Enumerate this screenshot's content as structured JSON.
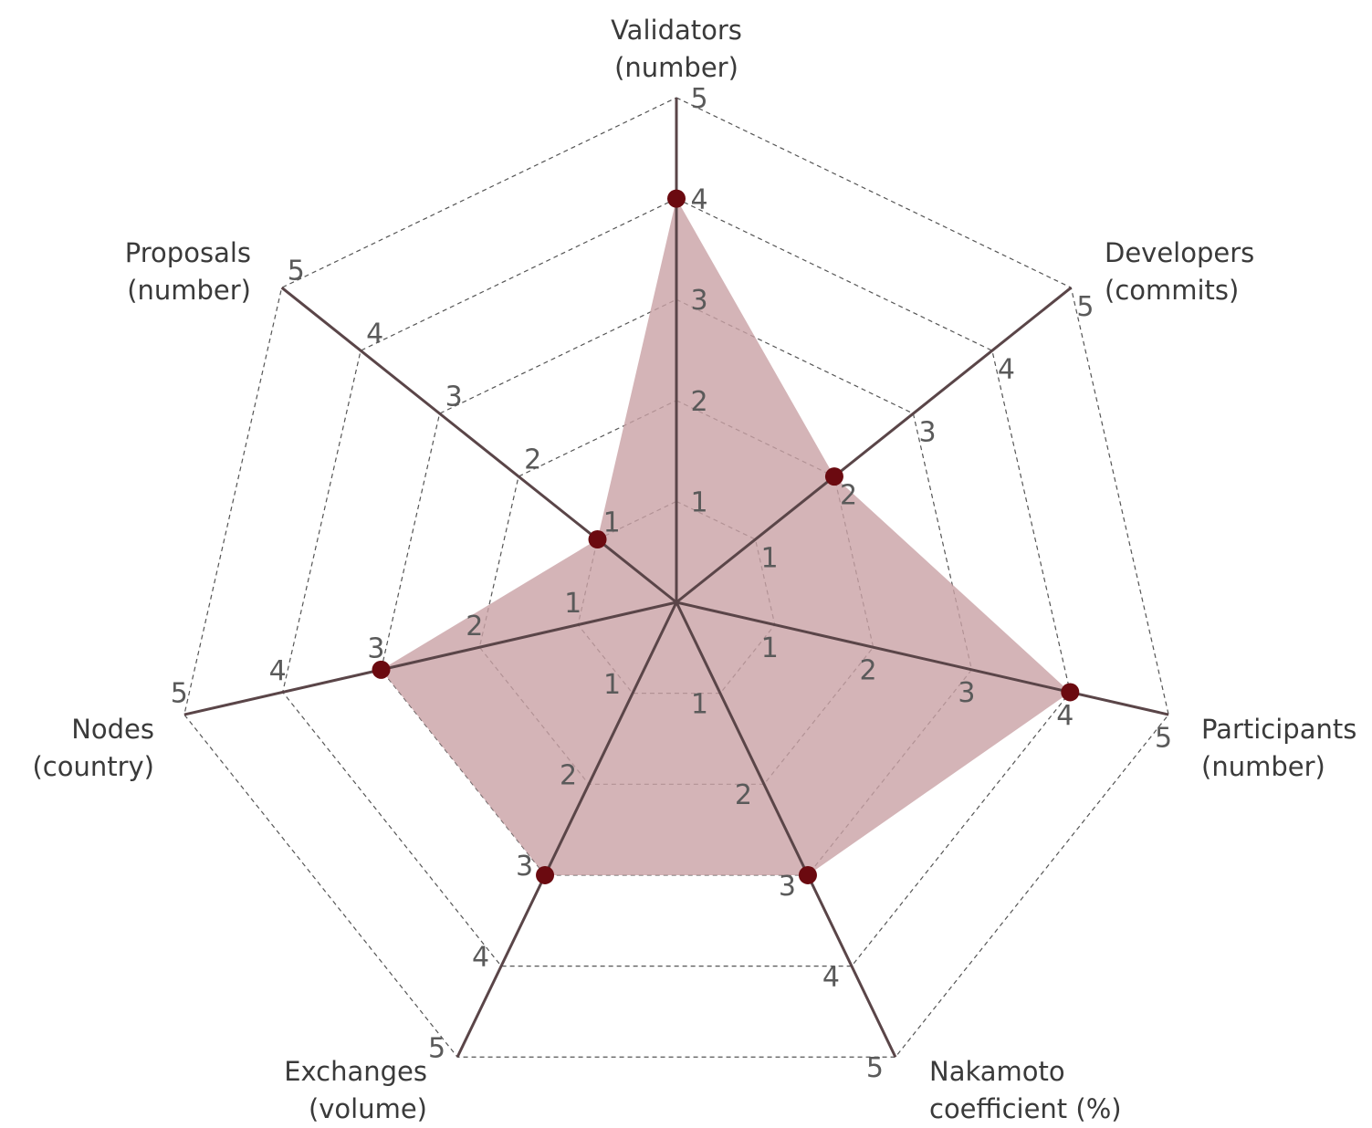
{
  "chart_data": {
    "type": "radar",
    "axes": [
      {
        "label": [
          "Validators",
          "(number)"
        ],
        "value": 4
      },
      {
        "label": [
          "Developers",
          "(commits)"
        ],
        "value": 2
      },
      {
        "label": [
          "Participants",
          "(number)"
        ],
        "value": 4
      },
      {
        "label": [
          "Nakamoto",
          "coefficient (%)"
        ],
        "value": 3
      },
      {
        "label": [
          "Exchanges",
          "(volume)"
        ],
        "value": 3
      },
      {
        "label": [
          "Nodes",
          "(country)"
        ],
        "value": 3
      },
      {
        "label": [
          "Proposals",
          "(number)"
        ],
        "value": 1
      }
    ],
    "range": [
      0,
      5
    ],
    "ticks": [
      "1",
      "2",
      "3",
      "4",
      "5"
    ],
    "grid": true,
    "colors": {
      "fill": "#c9a1a5",
      "point": "#6b0a10",
      "axis": "#5a4548"
    }
  }
}
